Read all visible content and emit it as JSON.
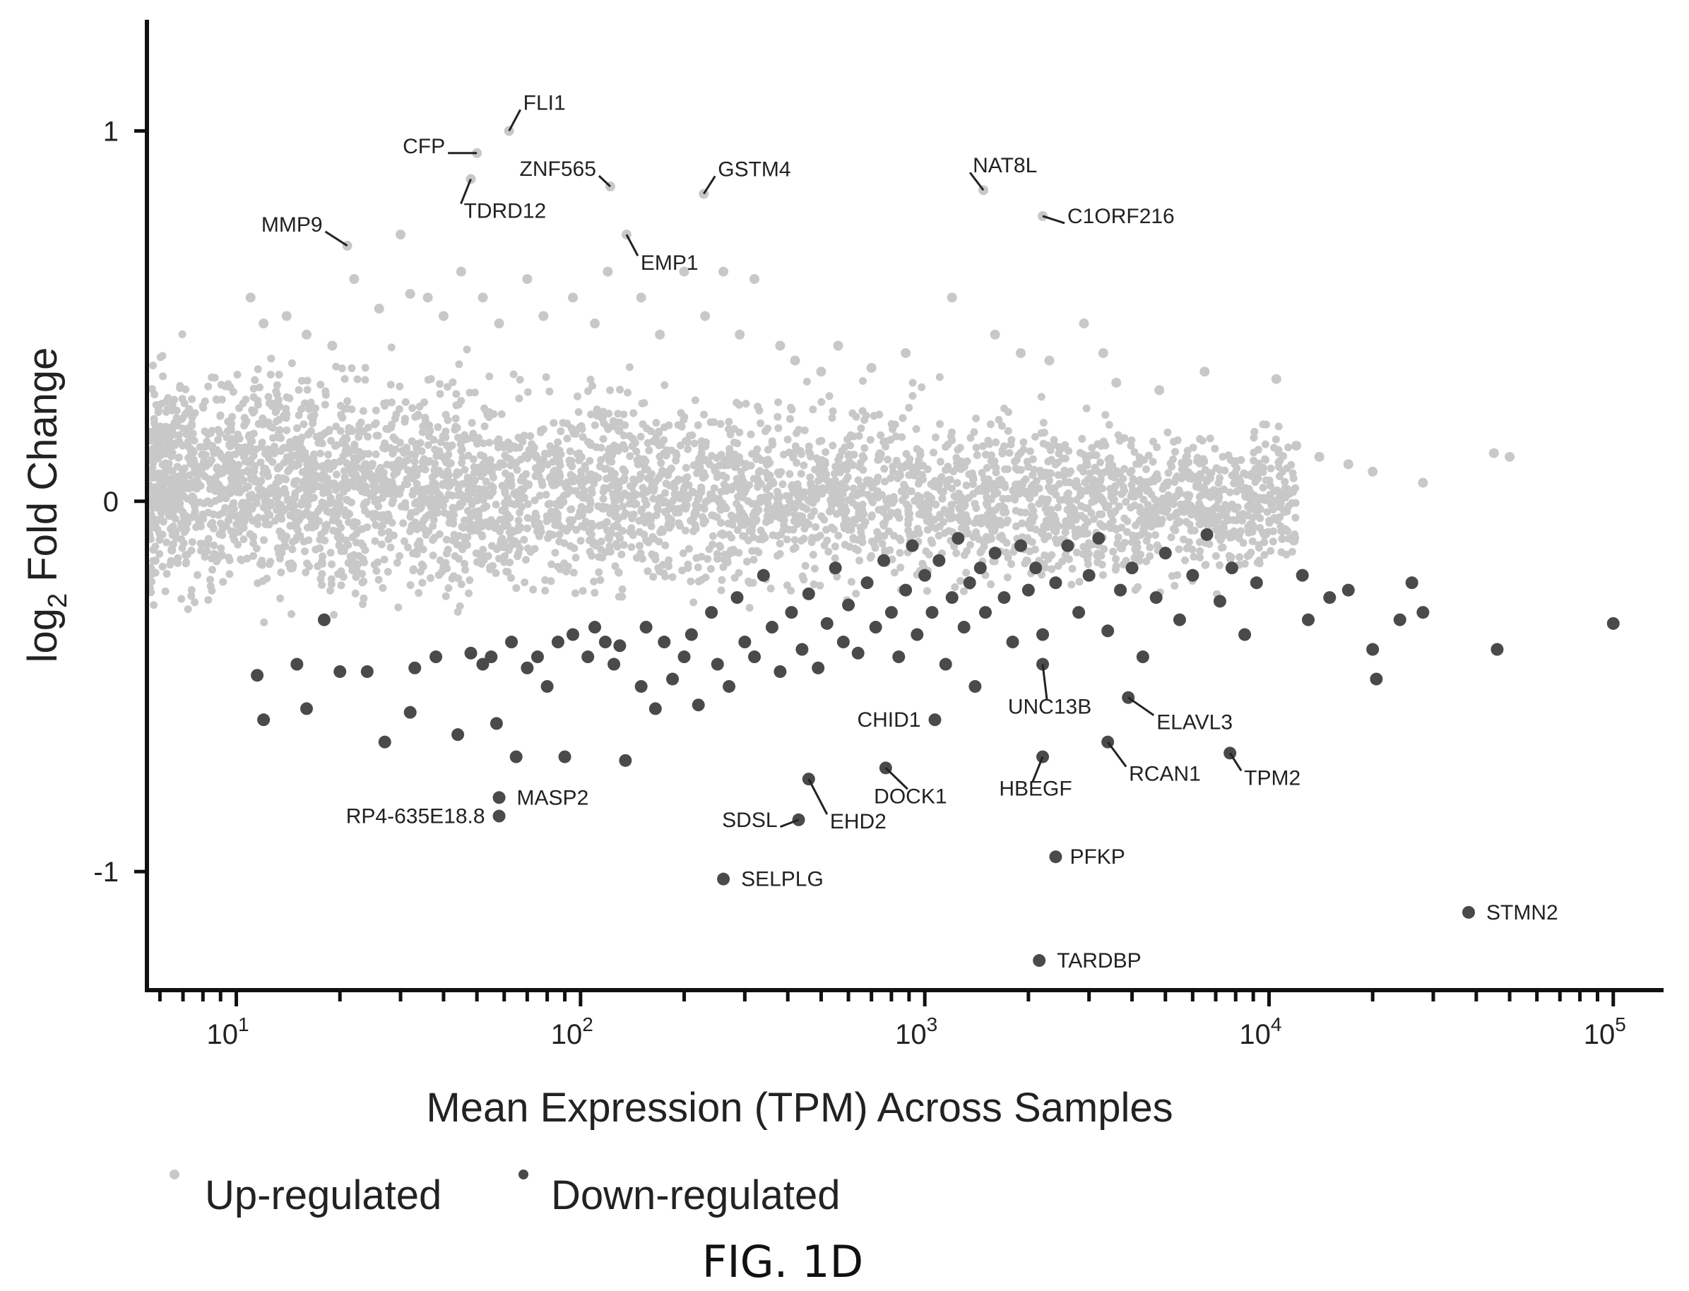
{
  "chart_data": {
    "type": "scatter",
    "title": "",
    "xlabel": "Mean Expression (TPM) Across Samples",
    "ylabel_main": "log",
    "ylabel_sub": "2",
    "ylabel_rest": " Fold Change",
    "x_scale": "log",
    "xlim": [
      5.5,
      140000
    ],
    "ylim": [
      -1.32,
      1.3
    ],
    "y_ticks": [
      {
        "value": 1,
        "label": "1"
      },
      {
        "value": 0,
        "label": "0"
      },
      {
        "value": -1,
        "label": "-1"
      }
    ],
    "x_tick_labels": [
      {
        "value": 10,
        "base": "10",
        "exp": "1"
      },
      {
        "value": 100,
        "base": "10",
        "exp": "2"
      },
      {
        "value": 1000,
        "base": "10",
        "exp": "3"
      },
      {
        "value": 10000,
        "base": "10",
        "exp": "4"
      },
      {
        "value": 100000,
        "base": "10",
        "exp": "5"
      }
    ],
    "legend": {
      "placement": "bottom-left",
      "entries": [
        {
          "name": "Up-regulated",
          "color": "#c8c8c8"
        },
        {
          "name": "Down-regulated",
          "color": "#4a4a4a"
        }
      ]
    },
    "colors": {
      "up": "#c8c8c8",
      "down": "#4a4a4a"
    },
    "cloud_note": "dense cloud of up-regulated points between x 5.5–12000, y -0.4–0.35",
    "up_points": [
      [
        11,
        0.55
      ],
      [
        12,
        0.48
      ],
      [
        14,
        0.5
      ],
      [
        16,
        0.45
      ],
      [
        19,
        0.42
      ],
      [
        22,
        0.6
      ],
      [
        26,
        0.52
      ],
      [
        30,
        0.72
      ],
      [
        32,
        0.56
      ],
      [
        36,
        0.55
      ],
      [
        40,
        0.5
      ],
      [
        45,
        0.62
      ],
      [
        52,
        0.55
      ],
      [
        58,
        0.48
      ],
      [
        70,
        0.6
      ],
      [
        78,
        0.5
      ],
      [
        95,
        0.55
      ],
      [
        110,
        0.48
      ],
      [
        120,
        0.62
      ],
      [
        150,
        0.55
      ],
      [
        170,
        0.45
      ],
      [
        200,
        0.62
      ],
      [
        230,
        0.5
      ],
      [
        260,
        0.62
      ],
      [
        290,
        0.45
      ],
      [
        320,
        0.6
      ],
      [
        380,
        0.42
      ],
      [
        420,
        0.38
      ],
      [
        500,
        0.35
      ],
      [
        560,
        0.42
      ],
      [
        700,
        0.36
      ],
      [
        880,
        0.4
      ],
      [
        1200,
        0.55
      ],
      [
        1600,
        0.45
      ],
      [
        1900,
        0.4
      ],
      [
        2300,
        0.38
      ],
      [
        2900,
        0.48
      ],
      [
        3300,
        0.4
      ],
      [
        3600,
        0.32
      ],
      [
        4800,
        0.3
      ],
      [
        6500,
        0.35
      ],
      [
        10500,
        0.33
      ],
      [
        12000,
        0.15
      ],
      [
        14000,
        0.12
      ],
      [
        17000,
        0.1
      ],
      [
        20000,
        0.08
      ],
      [
        28000,
        0.05
      ],
      [
        45000,
        0.13
      ],
      [
        50000,
        0.12
      ]
    ],
    "down_points": [
      [
        11.5,
        -0.47
      ],
      [
        12,
        -0.59
      ],
      [
        15,
        -0.44
      ],
      [
        16,
        -0.56
      ],
      [
        18,
        -0.32
      ],
      [
        20,
        -0.46
      ],
      [
        24,
        -0.46
      ],
      [
        27,
        -0.65
      ],
      [
        32,
        -0.57
      ],
      [
        33,
        -0.45
      ],
      [
        38,
        -0.42
      ],
      [
        44,
        -0.63
      ],
      [
        48,
        -0.41
      ],
      [
        52,
        -0.44
      ],
      [
        55,
        -0.42
      ],
      [
        57,
        -0.6
      ],
      [
        63,
        -0.38
      ],
      [
        65,
        -0.69
      ],
      [
        70,
        -0.45
      ],
      [
        75,
        -0.42
      ],
      [
        80,
        -0.5
      ],
      [
        86,
        -0.38
      ],
      [
        90,
        -0.69
      ],
      [
        95,
        -0.36
      ],
      [
        105,
        -0.42
      ],
      [
        110,
        -0.34
      ],
      [
        118,
        -0.38
      ],
      [
        125,
        -0.44
      ],
      [
        130,
        -0.39
      ],
      [
        135,
        -0.7
      ],
      [
        150,
        -0.5
      ],
      [
        155,
        -0.34
      ],
      [
        165,
        -0.56
      ],
      [
        175,
        -0.38
      ],
      [
        185,
        -0.48
      ],
      [
        200,
        -0.42
      ],
      [
        210,
        -0.36
      ],
      [
        220,
        -0.55
      ],
      [
        240,
        -0.3
      ],
      [
        250,
        -0.44
      ],
      [
        270,
        -0.5
      ],
      [
        285,
        -0.26
      ],
      [
        300,
        -0.38
      ],
      [
        320,
        -0.42
      ],
      [
        340,
        -0.2
      ],
      [
        360,
        -0.34
      ],
      [
        380,
        -0.46
      ],
      [
        410,
        -0.3
      ],
      [
        440,
        -0.4
      ],
      [
        460,
        -0.25
      ],
      [
        490,
        -0.45
      ],
      [
        520,
        -0.33
      ],
      [
        550,
        -0.18
      ],
      [
        580,
        -0.38
      ],
      [
        600,
        -0.28
      ],
      [
        640,
        -0.41
      ],
      [
        680,
        -0.22
      ],
      [
        720,
        -0.34
      ],
      [
        760,
        -0.16
      ],
      [
        800,
        -0.3
      ],
      [
        840,
        -0.42
      ],
      [
        880,
        -0.24
      ],
      [
        920,
        -0.12
      ],
      [
        950,
        -0.36
      ],
      [
        1000,
        -0.2
      ],
      [
        1050,
        -0.3
      ],
      [
        1100,
        -0.16
      ],
      [
        1150,
        -0.44
      ],
      [
        1200,
        -0.26
      ],
      [
        1250,
        -0.1
      ],
      [
        1300,
        -0.34
      ],
      [
        1350,
        -0.22
      ],
      [
        1400,
        -0.5
      ],
      [
        1450,
        -0.18
      ],
      [
        1500,
        -0.3
      ],
      [
        1600,
        -0.14
      ],
      [
        1700,
        -0.26
      ],
      [
        1800,
        -0.38
      ],
      [
        1900,
        -0.12
      ],
      [
        2000,
        -0.24
      ],
      [
        2100,
        -0.18
      ],
      [
        2200,
        -0.36
      ],
      [
        2400,
        -0.22
      ],
      [
        2600,
        -0.12
      ],
      [
        2800,
        -0.3
      ],
      [
        3000,
        -0.2
      ],
      [
        3200,
        -0.1
      ],
      [
        3400,
        -0.35
      ],
      [
        3700,
        -0.24
      ],
      [
        4000,
        -0.18
      ],
      [
        4300,
        -0.42
      ],
      [
        4700,
        -0.26
      ],
      [
        5000,
        -0.14
      ],
      [
        5500,
        -0.32
      ],
      [
        6000,
        -0.2
      ],
      [
        6600,
        -0.09
      ],
      [
        7200,
        -0.27
      ],
      [
        7800,
        -0.18
      ],
      [
        8500,
        -0.36
      ],
      [
        9200,
        -0.22
      ],
      [
        12500,
        -0.2
      ],
      [
        13000,
        -0.32
      ],
      [
        15000,
        -0.26
      ],
      [
        17000,
        -0.24
      ],
      [
        20000,
        -0.4
      ],
      [
        20500,
        -0.48
      ],
      [
        24000,
        -0.32
      ],
      [
        26000,
        -0.22
      ],
      [
        28000,
        -0.3
      ],
      [
        46000,
        -0.4
      ],
      [
        100000,
        -0.33
      ]
    ],
    "labeled_points": [
      {
        "label": "FLI1",
        "x": 62,
        "y": 1.0,
        "group": "up"
      },
      {
        "label": "CFP",
        "x": 50,
        "y": 0.94,
        "group": "up"
      },
      {
        "label": "ZNF565",
        "x": 122,
        "y": 0.85,
        "group": "up"
      },
      {
        "label": "TDRD12",
        "x": 48,
        "y": 0.87,
        "group": "up"
      },
      {
        "label": "GSTM4",
        "x": 228,
        "y": 0.83,
        "group": "up"
      },
      {
        "label": "MMP9",
        "x": 21,
        "y": 0.69,
        "group": "up"
      },
      {
        "label": "EMP1",
        "x": 136,
        "y": 0.72,
        "group": "up"
      },
      {
        "label": "NAT8L",
        "x": 1480,
        "y": 0.84,
        "group": "up"
      },
      {
        "label": "C1ORF216",
        "x": 2200,
        "y": 0.77,
        "group": "up"
      },
      {
        "label": "UNC13B",
        "x": 2200,
        "y": -0.44,
        "group": "down"
      },
      {
        "label": "CHID1",
        "x": 1070,
        "y": -0.59,
        "group": "down"
      },
      {
        "label": "ELAVL3",
        "x": 3900,
        "y": -0.53,
        "group": "down"
      },
      {
        "label": "HBEGF",
        "x": 2200,
        "y": -0.69,
        "group": "down"
      },
      {
        "label": "RCAN1",
        "x": 3400,
        "y": -0.65,
        "group": "down"
      },
      {
        "label": "TPM2",
        "x": 7700,
        "y": -0.68,
        "group": "down"
      },
      {
        "label": "DOCK1",
        "x": 770,
        "y": -0.72,
        "group": "down"
      },
      {
        "label": "MASP2",
        "x": 58,
        "y": -0.8,
        "group": "down"
      },
      {
        "label": "RP4-635E18.8",
        "x": 58,
        "y": -0.85,
        "group": "down"
      },
      {
        "label": "EHD2",
        "x": 460,
        "y": -0.75,
        "group": "down"
      },
      {
        "label": "SDSL",
        "x": 430,
        "y": -0.86,
        "group": "down"
      },
      {
        "label": "PFKP",
        "x": 2400,
        "y": -0.96,
        "group": "down"
      },
      {
        "label": "SELPLG",
        "x": 260,
        "y": -1.02,
        "group": "down"
      },
      {
        "label": "STMN2",
        "x": 38000,
        "y": -1.11,
        "group": "down"
      },
      {
        "label": "TARDBP",
        "x": 2150,
        "y": -1.24,
        "group": "down"
      }
    ]
  },
  "caption": "FIG. 1D"
}
